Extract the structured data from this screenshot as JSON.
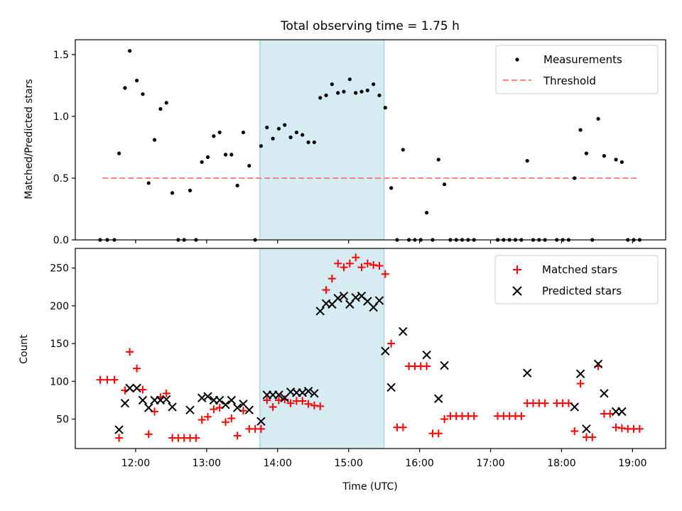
{
  "chart_data": [
    {
      "type": "scatter",
      "title": "Total observing time = 1.75 h",
      "ylabel": "Matched/Predicted stars",
      "ylim": [
        0,
        1.62
      ],
      "xlim": [
        "11:09",
        "19:28"
      ],
      "yticks": [
        0.0,
        0.5,
        1.0,
        1.5
      ],
      "ytick_labels": [
        "0.0",
        "0.5",
        "1.0",
        "1.5"
      ],
      "highlight_span": [
        "13:45",
        "15:30"
      ],
      "legend_position": "top-right",
      "threshold": {
        "name": "Threshold",
        "y": 0.5,
        "x_start": "11:32",
        "x_end": "19:05",
        "color": "#ff7f7f"
      },
      "series": [
        {
          "name": "Measurements",
          "color": "#000000",
          "marker": "dot",
          "points": [
            [
              "11:30",
              0
            ],
            [
              "11:36",
              0
            ],
            [
              "11:42",
              0
            ],
            [
              "11:46",
              0.7
            ],
            [
              "11:51",
              1.23
            ],
            [
              "11:55",
              1.53
            ],
            [
              "12:01",
              1.29
            ],
            [
              "12:06",
              1.18
            ],
            [
              "12:11",
              0.46
            ],
            [
              "12:16",
              0.81
            ],
            [
              "12:21",
              1.06
            ],
            [
              "12:26",
              1.11
            ],
            [
              "12:31",
              0.38
            ],
            [
              "12:36",
              0
            ],
            [
              "12:41",
              0
            ],
            [
              "12:46",
              0.4
            ],
            [
              "12:51",
              0
            ],
            [
              "12:56",
              0.63
            ],
            [
              "13:01",
              0.67
            ],
            [
              "13:06",
              0.84
            ],
            [
              "13:11",
              0.87
            ],
            [
              "13:16",
              0.69
            ],
            [
              "13:21",
              0.69
            ],
            [
              "13:26",
              0.44
            ],
            [
              "13:31",
              0.87
            ],
            [
              "13:36",
              0.6
            ],
            [
              "13:41",
              0
            ],
            [
              "13:46",
              0.76
            ],
            [
              "13:51",
              0.91
            ],
            [
              "13:56",
              0.82
            ],
            [
              "14:01",
              0.9
            ],
            [
              "14:06",
              0.93
            ],
            [
              "14:11",
              0.83
            ],
            [
              "14:16",
              0.87
            ],
            [
              "14:21",
              0.85
            ],
            [
              "14:26",
              0.79
            ],
            [
              "14:31",
              0.79
            ],
            [
              "14:36",
              1.15
            ],
            [
              "14:41",
              1.17
            ],
            [
              "14:46",
              1.26
            ],
            [
              "14:51",
              1.19
            ],
            [
              "14:56",
              1.2
            ],
            [
              "15:01",
              1.3
            ],
            [
              "15:06",
              1.19
            ],
            [
              "15:11",
              1.2
            ],
            [
              "15:16",
              1.21
            ],
            [
              "15:21",
              1.26
            ],
            [
              "15:26",
              1.17
            ],
            [
              "15:31",
              1.07
            ],
            [
              "15:36",
              0.42
            ],
            [
              "15:41",
              0
            ],
            [
              "15:46",
              0.73
            ],
            [
              "15:51",
              0
            ],
            [
              "15:56",
              0
            ],
            [
              "16:01",
              0
            ],
            [
              "16:06",
              0.22
            ],
            [
              "16:11",
              0
            ],
            [
              "16:16",
              0.65
            ],
            [
              "16:21",
              0.45
            ],
            [
              "16:26",
              0
            ],
            [
              "16:31",
              0
            ],
            [
              "16:36",
              0
            ],
            [
              "16:41",
              0
            ],
            [
              "16:46",
              0
            ],
            [
              "17:06",
              0
            ],
            [
              "17:11",
              0
            ],
            [
              "17:16",
              0
            ],
            [
              "17:21",
              0
            ],
            [
              "17:26",
              0
            ],
            [
              "17:31",
              0.64
            ],
            [
              "17:36",
              0
            ],
            [
              "17:41",
              0
            ],
            [
              "17:46",
              0
            ],
            [
              "17:56",
              0
            ],
            [
              "18:01",
              0
            ],
            [
              "18:06",
              0
            ],
            [
              "18:11",
              0.5
            ],
            [
              "18:16",
              0.89
            ],
            [
              "18:21",
              0.7
            ],
            [
              "18:26",
              0
            ],
            [
              "18:31",
              0.98
            ],
            [
              "18:36",
              0.68
            ],
            [
              "18:46",
              0.65
            ],
            [
              "18:51",
              0.63
            ],
            [
              "18:56",
              0
            ],
            [
              "19:01",
              0
            ],
            [
              "19:06",
              0
            ]
          ]
        }
      ]
    },
    {
      "type": "scatter",
      "xlabel": "Time (UTC)",
      "ylabel": "Count",
      "ylim": [
        11,
        276
      ],
      "xlim": [
        "11:09",
        "19:28"
      ],
      "yticks": [
        50,
        100,
        150,
        200,
        250
      ],
      "ytick_labels": [
        "50",
        "100",
        "150",
        "200",
        "250"
      ],
      "xticks": [
        "12:00",
        "13:00",
        "14:00",
        "15:00",
        "16:00",
        "17:00",
        "18:00",
        "19:00"
      ],
      "xtick_labels": [
        "12:00",
        "13:00",
        "14:00",
        "15:00",
        "16:00",
        "17:00",
        "18:00",
        "19:00"
      ],
      "highlight_span": [
        "13:45",
        "15:30"
      ],
      "legend_position": "top-right",
      "series": [
        {
          "name": "Matched stars",
          "color": "#ff0000",
          "marker": "plus",
          "points": [
            [
              "11:30",
              102
            ],
            [
              "11:36",
              102
            ],
            [
              "11:42",
              102
            ],
            [
              "11:46",
              25
            ],
            [
              "11:51",
              88
            ],
            [
              "11:55",
              139
            ],
            [
              "12:01",
              117
            ],
            [
              "12:06",
              89
            ],
            [
              "12:11",
              30
            ],
            [
              "12:16",
              60
            ],
            [
              "12:21",
              79
            ],
            [
              "12:26",
              84
            ],
            [
              "12:31",
              25
            ],
            [
              "12:36",
              25
            ],
            [
              "12:41",
              25
            ],
            [
              "12:46",
              25
            ],
            [
              "12:51",
              25
            ],
            [
              "12:56",
              49
            ],
            [
              "13:01",
              53
            ],
            [
              "13:06",
              63
            ],
            [
              "13:11",
              65
            ],
            [
              "13:16",
              46
            ],
            [
              "13:21",
              51
            ],
            [
              "13:26",
              28
            ],
            [
              "13:31",
              61
            ],
            [
              "13:36",
              37
            ],
            [
              "13:41",
              37
            ],
            [
              "13:46",
              37
            ],
            [
              "13:51",
              75
            ],
            [
              "13:56",
              66
            ],
            [
              "14:01",
              75
            ],
            [
              "14:06",
              76
            ],
            [
              "14:11",
              71
            ],
            [
              "14:16",
              74
            ],
            [
              "14:21",
              74
            ],
            [
              "14:26",
              70
            ],
            [
              "14:31",
              68
            ],
            [
              "14:36",
              67
            ],
            [
              "14:41",
              221
            ],
            [
              "14:46",
              236
            ],
            [
              "14:51",
              256
            ],
            [
              "14:56",
              251
            ],
            [
              "15:01",
              256
            ],
            [
              "15:06",
              264
            ],
            [
              "15:11",
              251
            ],
            [
              "15:16",
              256
            ],
            [
              "15:21",
              254
            ],
            [
              "15:26",
              253
            ],
            [
              "15:31",
              242
            ],
            [
              "15:36",
              150
            ],
            [
              "15:41",
              39
            ],
            [
              "15:46",
              39
            ],
            [
              "15:51",
              120
            ],
            [
              "15:56",
              120
            ],
            [
              "16:01",
              120
            ],
            [
              "16:06",
              120
            ],
            [
              "16:11",
              31
            ],
            [
              "16:16",
              31
            ],
            [
              "16:21",
              50
            ],
            [
              "16:26",
              54
            ],
            [
              "16:31",
              54
            ],
            [
              "16:36",
              54
            ],
            [
              "16:41",
              54
            ],
            [
              "16:46",
              54
            ],
            [
              "17:06",
              54
            ],
            [
              "17:11",
              54
            ],
            [
              "17:16",
              54
            ],
            [
              "17:21",
              54
            ],
            [
              "17:26",
              54
            ],
            [
              "17:31",
              71
            ],
            [
              "17:36",
              71
            ],
            [
              "17:41",
              71
            ],
            [
              "17:46",
              71
            ],
            [
              "17:56",
              71
            ],
            [
              "18:01",
              71
            ],
            [
              "18:06",
              71
            ],
            [
              "18:11",
              34
            ],
            [
              "18:16",
              97
            ],
            [
              "18:21",
              26
            ],
            [
              "18:26",
              26
            ],
            [
              "18:31",
              120
            ],
            [
              "18:36",
              57
            ],
            [
              "18:41",
              57
            ],
            [
              "18:46",
              39
            ],
            [
              "18:51",
              38
            ],
            [
              "18:56",
              37
            ],
            [
              "19:01",
              37
            ],
            [
              "19:06",
              37
            ]
          ]
        },
        {
          "name": "Predicted stars",
          "color": "#000000",
          "marker": "x",
          "points": [
            [
              "11:46",
              36
            ],
            [
              "11:51",
              71
            ],
            [
              "11:55",
              91
            ],
            [
              "12:01",
              91
            ],
            [
              "12:06",
              75
            ],
            [
              "12:11",
              65
            ],
            [
              "12:16",
              75
            ],
            [
              "12:21",
              75
            ],
            [
              "12:26",
              76
            ],
            [
              "12:31",
              66
            ],
            [
              "12:46",
              62
            ],
            [
              "12:56",
              78
            ],
            [
              "13:01",
              80
            ],
            [
              "13:06",
              75
            ],
            [
              "13:11",
              75
            ],
            [
              "13:16",
              69
            ],
            [
              "13:21",
              75
            ],
            [
              "13:26",
              65
            ],
            [
              "13:31",
              70
            ],
            [
              "13:36",
              62
            ],
            [
              "13:46",
              47
            ],
            [
              "13:51",
              82
            ],
            [
              "13:56",
              82
            ],
            [
              "14:01",
              82
            ],
            [
              "14:06",
              78
            ],
            [
              "14:11",
              86
            ],
            [
              "14:16",
              85
            ],
            [
              "14:21",
              85
            ],
            [
              "14:26",
              87
            ],
            [
              "14:31",
              84
            ],
            [
              "14:36",
              193
            ],
            [
              "14:41",
              203
            ],
            [
              "14:46",
              202
            ],
            [
              "14:51",
              210
            ],
            [
              "14:56",
              213
            ],
            [
              "15:01",
              202
            ],
            [
              "15:06",
              211
            ],
            [
              "15:11",
              213
            ],
            [
              "15:16",
              206
            ],
            [
              "15:21",
              198
            ],
            [
              "15:26",
              207
            ],
            [
              "15:31",
              140
            ],
            [
              "15:36",
              92
            ],
            [
              "15:46",
              166
            ],
            [
              "16:06",
              135
            ],
            [
              "16:16",
              77
            ],
            [
              "16:21",
              121
            ],
            [
              "17:31",
              111
            ],
            [
              "18:11",
              66
            ],
            [
              "18:16",
              110
            ],
            [
              "18:21",
              37
            ],
            [
              "18:31",
              123
            ],
            [
              "18:36",
              84
            ],
            [
              "18:46",
              60
            ],
            [
              "18:51",
              60
            ]
          ]
        }
      ]
    }
  ]
}
